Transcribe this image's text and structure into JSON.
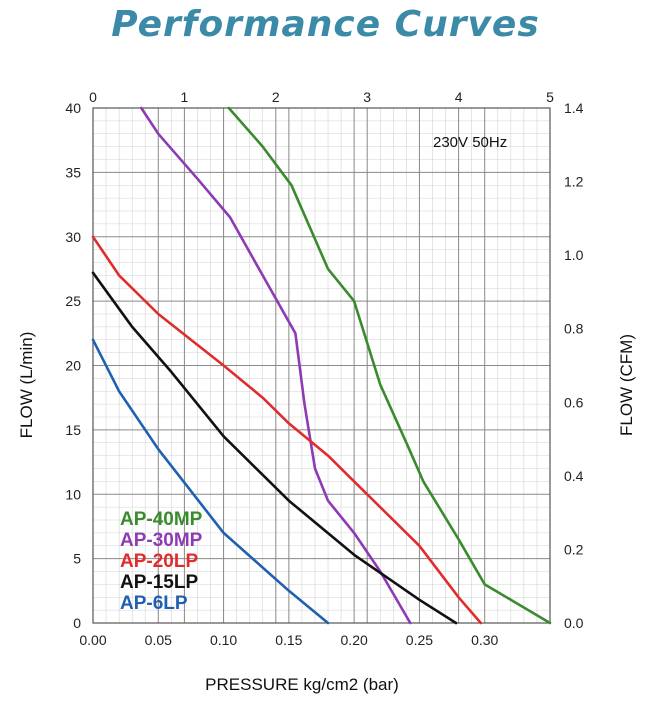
{
  "chart_data": {
    "type": "line",
    "title": "Performance Curves",
    "annotation": "230V 50Hz",
    "xlabel": "PRESSURE kg/cm2 (bar)",
    "ylabel": "FLOW (L/min)",
    "y2label": "FLOW (CFM)",
    "xlim": [
      0,
      0.35
    ],
    "ylim": [
      0,
      40
    ],
    "y2lim": [
      0,
      1.4
    ],
    "x2lim": [
      0,
      5
    ],
    "x_ticks": [
      "0.00",
      "0.05",
      "0.10",
      "0.15",
      "0.20",
      "0.25",
      "0.30"
    ],
    "x_tick_values": [
      0,
      0.05,
      0.1,
      0.15,
      0.2,
      0.25,
      0.3
    ],
    "y_ticks": [
      "0",
      "5",
      "10",
      "15",
      "20",
      "25",
      "30",
      "35",
      "40"
    ],
    "y_tick_values": [
      0,
      5,
      10,
      15,
      20,
      25,
      30,
      35,
      40
    ],
    "y2_ticks": [
      "0.0",
      "0.2",
      "0.4",
      "0.6",
      "0.8",
      "1.0",
      "1.2",
      "1.4"
    ],
    "y2_tick_values": [
      0,
      0.2,
      0.4,
      0.6,
      0.8,
      1.0,
      1.2,
      1.4
    ],
    "x2_ticks": [
      "0",
      "1",
      "2",
      "3",
      "4",
      "5"
    ],
    "x2_tick_values": [
      0,
      1,
      2,
      3,
      4,
      5
    ],
    "grid": true,
    "legend_position": "bottom-left",
    "series": [
      {
        "name": "AP-40MP",
        "color": "#3a8a2e",
        "points": [
          [
            0.104,
            40
          ],
          [
            0.13,
            37
          ],
          [
            0.152,
            34
          ],
          [
            0.18,
            27.5
          ],
          [
            0.2,
            25
          ],
          [
            0.22,
            18.5
          ],
          [
            0.24,
            14
          ],
          [
            0.253,
            11
          ],
          [
            0.28,
            6.5
          ],
          [
            0.3,
            3
          ],
          [
            0.35,
            0
          ]
        ]
      },
      {
        "name": "AP-30MP",
        "color": "#8e3ab5",
        "points": [
          [
            0.037,
            40
          ],
          [
            0.05,
            38
          ],
          [
            0.08,
            34.5
          ],
          [
            0.105,
            31.5
          ],
          [
            0.13,
            27
          ],
          [
            0.155,
            22.5
          ],
          [
            0.162,
            17
          ],
          [
            0.17,
            12
          ],
          [
            0.18,
            9.5
          ],
          [
            0.2,
            7
          ],
          [
            0.22,
            4
          ],
          [
            0.243,
            0
          ]
        ]
      },
      {
        "name": "AP-20LP",
        "color": "#e02c2c",
        "points": [
          [
            0,
            30
          ],
          [
            0.02,
            27
          ],
          [
            0.05,
            24
          ],
          [
            0.1,
            20
          ],
          [
            0.13,
            17.5
          ],
          [
            0.15,
            15.5
          ],
          [
            0.18,
            13
          ],
          [
            0.2,
            11
          ],
          [
            0.25,
            6
          ],
          [
            0.28,
            2
          ],
          [
            0.297,
            0
          ]
        ]
      },
      {
        "name": "AP-15LP",
        "color": "#111111",
        "points": [
          [
            0,
            27.2
          ],
          [
            0.03,
            23
          ],
          [
            0.06,
            19.5
          ],
          [
            0.1,
            14.5
          ],
          [
            0.15,
            9.5
          ],
          [
            0.2,
            5.3
          ],
          [
            0.25,
            1.8
          ],
          [
            0.278,
            0
          ]
        ]
      },
      {
        "name": "AP-6LP",
        "color": "#2060b0",
        "points": [
          [
            0,
            22
          ],
          [
            0.02,
            18
          ],
          [
            0.05,
            13.5
          ],
          [
            0.1,
            7
          ],
          [
            0.15,
            2.5
          ],
          [
            0.18,
            0
          ]
        ]
      }
    ]
  }
}
